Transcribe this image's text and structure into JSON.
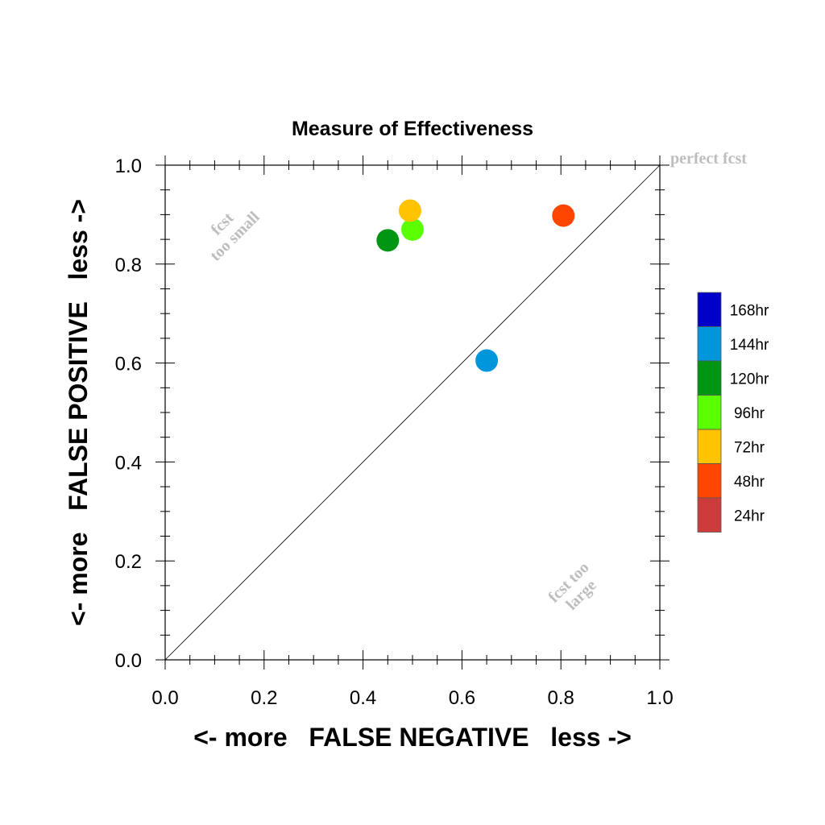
{
  "chart_data": {
    "type": "scatter",
    "title": "Measure of Effectiveness",
    "xlabel": "<- more   FALSE NEGATIVE   less ->",
    "ylabel": "<- more   FALSE POSITIVE   less ->",
    "xlim": [
      0.0,
      1.0
    ],
    "ylim": [
      0.0,
      1.0
    ],
    "x_ticks": [
      "0.0",
      "0.2",
      "0.4",
      "0.6",
      "0.8",
      "1.0"
    ],
    "y_ticks": [
      "0.0",
      "0.2",
      "0.4",
      "0.6",
      "0.8",
      "1.0"
    ],
    "grid": false,
    "diagonal_line": true,
    "annotations": {
      "perfect": "perfect fcst",
      "too_small_1": "fcst",
      "too_small_2": "too small",
      "too_large_1": "fcst too",
      "too_large_2": "large"
    },
    "legend": {
      "placement": "right",
      "entries": [
        {
          "label": "168hr",
          "color": "#0000c8"
        },
        {
          "label": "144hr",
          "color": "#0096dc"
        },
        {
          "label": "120hr",
          "color": "#009614"
        },
        {
          "label": "96hr",
          "color": "#5aff00"
        },
        {
          "label": "72hr",
          "color": "#ffc300"
        },
        {
          "label": "48hr",
          "color": "#ff4600"
        },
        {
          "label": "24hr",
          "color": "#cc3c3c"
        }
      ]
    },
    "points": [
      {
        "series": "144hr",
        "x": 0.65,
        "y": 0.605,
        "color": "#0096dc"
      },
      {
        "series": "120hr",
        "x": 0.45,
        "y": 0.848,
        "color": "#009614"
      },
      {
        "series": "96hr",
        "x": 0.5,
        "y": 0.87,
        "color": "#5aff00"
      },
      {
        "series": "72hr",
        "x": 0.495,
        "y": 0.908,
        "color": "#ffc300"
      },
      {
        "series": "48hr",
        "x": 0.805,
        "y": 0.898,
        "color": "#ff4600"
      }
    ]
  }
}
